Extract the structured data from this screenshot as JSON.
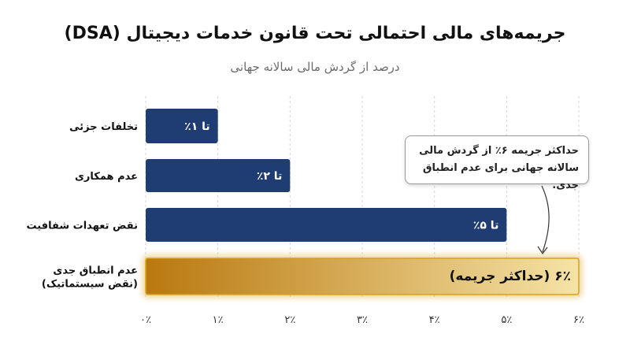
{
  "chart_data": {
    "type": "bar",
    "orientation": "horizontal",
    "title": "جریمه‌های مالی احتمالی تحت قانون خدمات دیجیتال (DSA)",
    "subtitle": "درصد از گردش مالی سالانه جهانی",
    "xlim": [
      0,
      6
    ],
    "xticks": [
      {
        "value": 0,
        "label": "۰٪"
      },
      {
        "value": 1,
        "label": "۱٪"
      },
      {
        "value": 2,
        "label": "۲٪"
      },
      {
        "value": 3,
        "label": "۳٪"
      },
      {
        "value": 4,
        "label": "۴٪"
      },
      {
        "value": 5,
        "label": "۵٪"
      },
      {
        "value": 6,
        "label": "۶٪"
      }
    ],
    "grid": true,
    "bars": [
      {
        "category": "تخلفات جزئی",
        "value": 1,
        "label": "تا ۱٪",
        "highlight": false
      },
      {
        "category": "عدم همکاری",
        "value": 2,
        "label": "تا ۲٪",
        "highlight": false
      },
      {
        "category": "نقض تعهدات شفافیت",
        "value": 5,
        "label": "تا ۵٪",
        "highlight": false
      },
      {
        "category": "عدم انطباق جدی\n(نقض سیستماتیک)",
        "value": 6,
        "label": "۶٪ (حداکثر جریمه)",
        "highlight": true
      }
    ],
    "annotation": "حداکثر جریمه ۶٪ از گردش مالی سالانه جهانی برای عدم انطباق جدی."
  },
  "colors": {
    "bar": "#1f3d73",
    "highlight_start": "#b9780f",
    "highlight_end": "#f5e3a6",
    "highlight_border": "#d9a21b",
    "grid": "#d6d6d6"
  }
}
